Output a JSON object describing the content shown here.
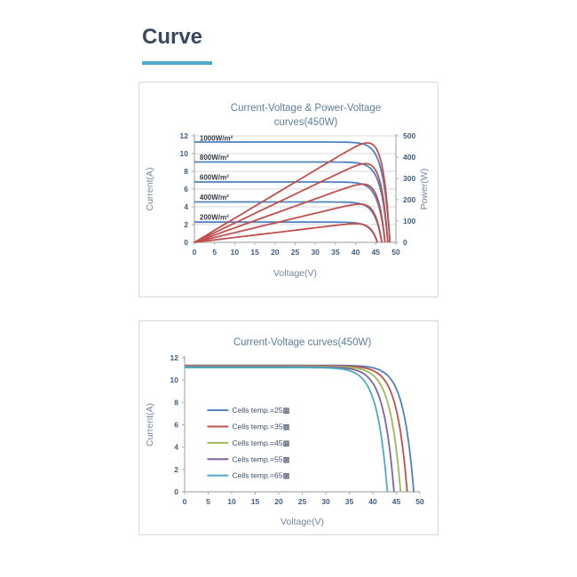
{
  "page": {
    "title": "Curve",
    "accent_color": "#4bacc6"
  },
  "chart_data": [
    {
      "id": "iv_pv",
      "type": "line",
      "title": "Current-Voltage & Power-Voltage curves(450W)",
      "title_lines": [
        "Current-Voltage & Power-Voltage",
        "curves(450W)"
      ],
      "xlabel": "Voltage(V)",
      "ylabel": "Current(A)",
      "y2label": "Power(W)",
      "xlim": [
        0,
        50
      ],
      "ylim": [
        0,
        12
      ],
      "y2lim": [
        0,
        500
      ],
      "x_ticks": [
        0,
        5,
        10,
        15,
        20,
        25,
        30,
        35,
        40,
        45,
        50
      ],
      "y_ticks": [
        0,
        2,
        4,
        6,
        8,
        10,
        12
      ],
      "y2_ticks": [
        0,
        100,
        200,
        300,
        400,
        500
      ],
      "grid": true,
      "iv_color": "#4f81bd",
      "pv_color": "#c0504d",
      "series": [
        {
          "label": "1000W/m²",
          "irradiance_wm2": 1000,
          "isc_a": 11.3,
          "voc_v": 48.5,
          "pmax_w": 464,
          "vmp_v": 42.0,
          "knee": 1.7
        },
        {
          "label": "800W/m²",
          "irradiance_wm2": 800,
          "isc_a": 9.05,
          "voc_v": 48.0,
          "pmax_w": 369,
          "vmp_v": 42.0,
          "knee": 1.7
        },
        {
          "label": "600W/m²",
          "irradiance_wm2": 600,
          "isc_a": 6.8,
          "voc_v": 47.3,
          "pmax_w": 272,
          "vmp_v": 41.5,
          "knee": 1.7
        },
        {
          "label": "400W/m²",
          "irradiance_wm2": 400,
          "isc_a": 4.55,
          "voc_v": 46.5,
          "pmax_w": 180,
          "vmp_v": 40.9,
          "knee": 1.7
        },
        {
          "label": "200W/m²",
          "irradiance_wm2": 200,
          "isc_a": 2.28,
          "voc_v": 45.4,
          "pmax_w": 87,
          "vmp_v": 39.9,
          "knee": 1.7
        }
      ],
      "annotations": [
        {
          "text": "1000W/m²",
          "x": 1.3,
          "y": 11.45
        },
        {
          "text": "800W/m²",
          "x": 1.3,
          "y": 9.3
        },
        {
          "text": "600W/m²",
          "x": 1.3,
          "y": 7.05
        },
        {
          "text": "400W/m²",
          "x": 1.3,
          "y": 4.8
        },
        {
          "text": "200W/m²",
          "x": 1.3,
          "y": 2.55
        }
      ]
    },
    {
      "id": "iv_temp",
      "type": "line",
      "title": "Current-Voltage curves(450W)",
      "title_lines": [
        "Current-Voltage curves(450W)"
      ],
      "xlabel": "Voltage(V)",
      "ylabel": "Current(A)",
      "xlim": [
        0,
        50
      ],
      "ylim": [
        0,
        12
      ],
      "x_ticks": [
        0,
        5,
        10,
        15,
        20,
        25,
        30,
        35,
        40,
        45,
        50
      ],
      "y_ticks": [
        0,
        2,
        4,
        6,
        8,
        10,
        12
      ],
      "grid": false,
      "series": [
        {
          "label": "Cells temp.=25▩",
          "temp_c": 25,
          "color": "#4f81bd",
          "isc_a": 11.32,
          "voc_v": 48.7,
          "knee": 2.2
        },
        {
          "label": "Cells temp.=35▩",
          "temp_c": 35,
          "color": "#c0504d",
          "isc_a": 11.27,
          "voc_v": 47.3,
          "knee": 2.2
        },
        {
          "label": "Cells temp.=45▩",
          "temp_c": 45,
          "color": "#9bbb59",
          "isc_a": 11.22,
          "voc_v": 45.9,
          "knee": 2.2
        },
        {
          "label": "Cells temp.=55▩",
          "temp_c": 55,
          "color": "#8064a2",
          "isc_a": 11.17,
          "voc_v": 44.5,
          "knee": 2.2
        },
        {
          "label": "Cells temp.=65▩",
          "temp_c": 65,
          "color": "#4bacc6",
          "isc_a": 11.12,
          "voc_v": 43.1,
          "knee": 2.2
        }
      ],
      "legend": {
        "position": "middle-left"
      }
    }
  ]
}
